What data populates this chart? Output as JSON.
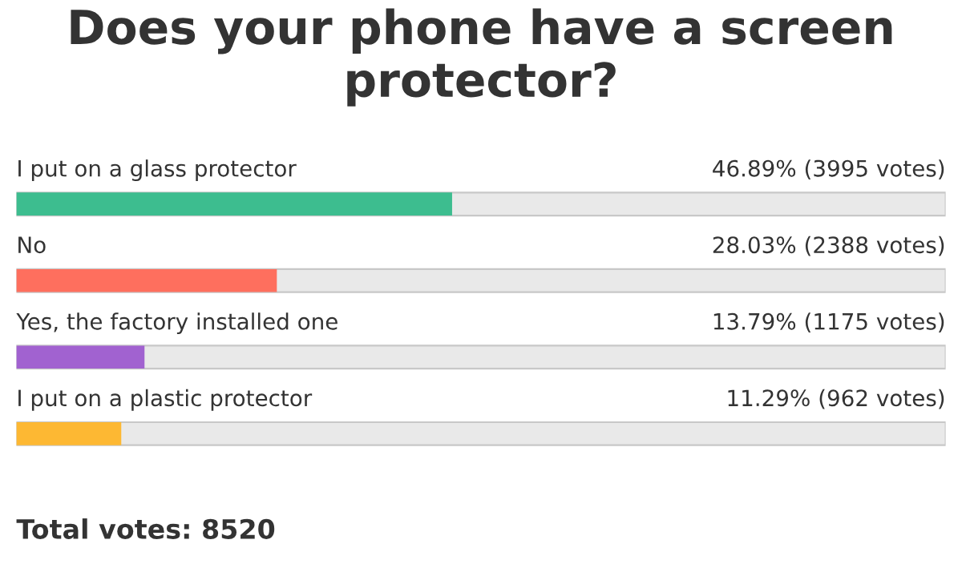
{
  "chart_data": {
    "type": "bar",
    "orientation": "horizontal",
    "title": "Does your phone have a screen protector?",
    "categories": [
      "I put on a glass protector",
      "No",
      "Yes, the factory installed one",
      "I put on a plastic protector"
    ],
    "values": [
      46.89,
      28.03,
      13.79,
      11.29
    ],
    "colors": [
      "#3dbd8f",
      "#fe6f5e",
      "#a162d0",
      "#fdb833"
    ],
    "value_labels": [
      "46.89% (3995 votes)",
      "28.03% (2388 votes)",
      "13.79% (1175 votes)",
      "11.29% (962 votes)"
    ],
    "xlim": [
      0,
      100
    ],
    "annotations": [
      "Total votes: 8520"
    ]
  }
}
